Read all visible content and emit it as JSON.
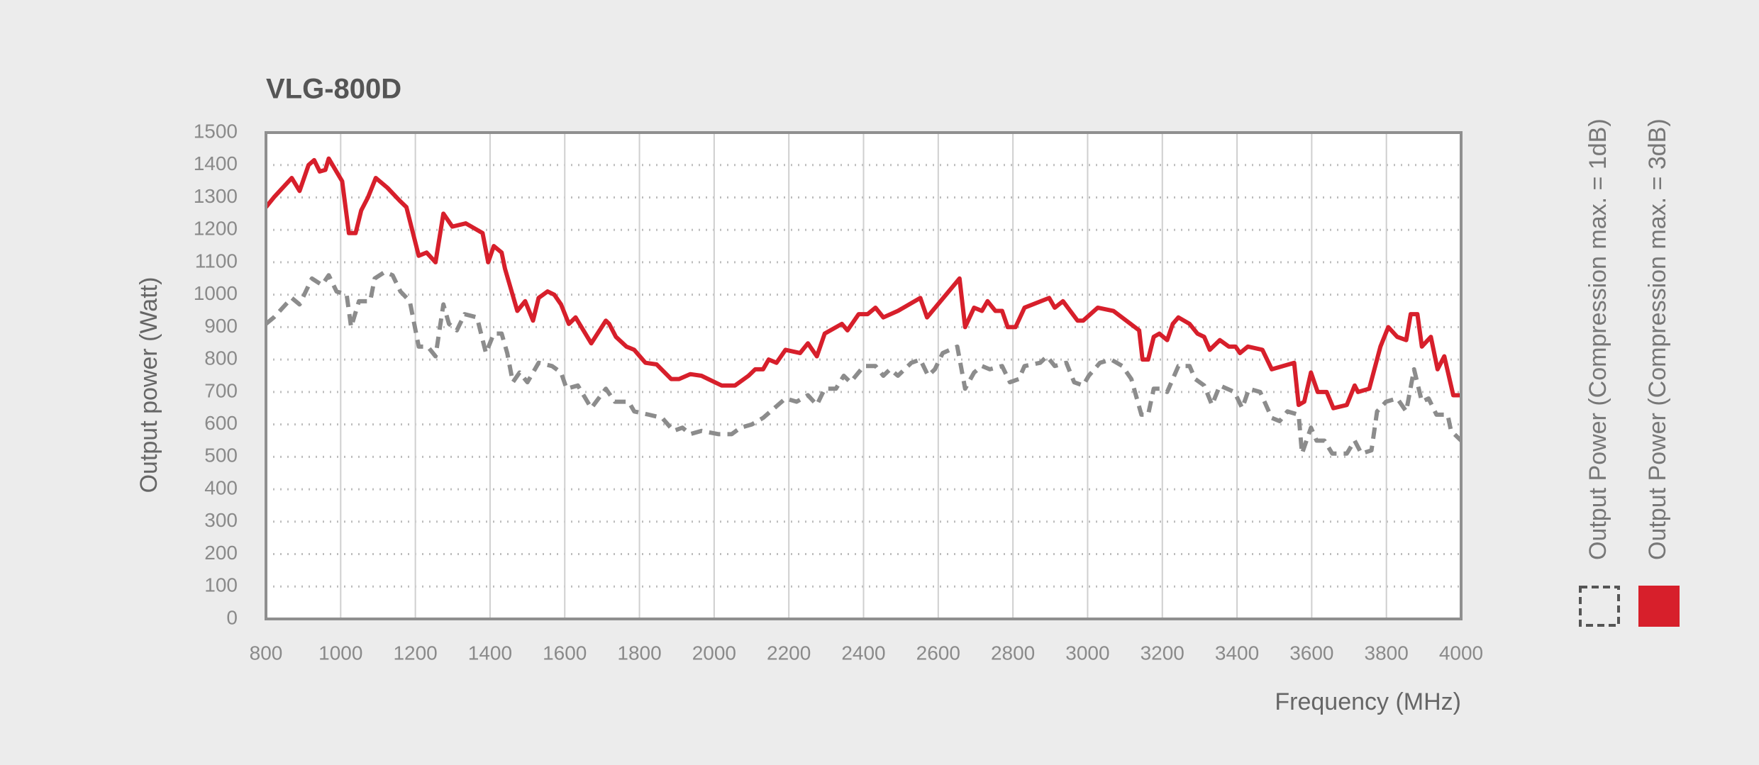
{
  "chart_data": {
    "type": "line",
    "title": "VLG-800D",
    "x_label": "Frequency (MHz)",
    "y_label": "Output power (Watt)",
    "xlim": [
      800,
      4000
    ],
    "xticks": [
      800,
      1000,
      1200,
      1400,
      1600,
      1800,
      2000,
      2200,
      2400,
      2600,
      2800,
      3000,
      3200,
      3400,
      3600,
      3800,
      4000
    ],
    "ylim": [
      0,
      1500
    ],
    "yticks": [
      0,
      100,
      200,
      300,
      400,
      500,
      600,
      700,
      800,
      900,
      1000,
      1100,
      1200,
      1300,
      1400,
      1500
    ],
    "grid": true,
    "legend": "right",
    "series": [
      {
        "name": "Output Power (Compression max. = 1dB)",
        "color": "#8c8c8c",
        "line_style": "dashed",
        "x": [
          800,
          821,
          869,
          890,
          923,
          950,
          968,
          989,
          1016,
          1028,
          1049,
          1079,
          1091,
          1118,
          1139,
          1160,
          1185,
          1209,
          1233,
          1254,
          1275,
          1290,
          1311,
          1332,
          1365,
          1389,
          1410,
          1431,
          1446,
          1461,
          1479,
          1500,
          1530,
          1566,
          1590,
          1605,
          1635,
          1671,
          1710,
          1734,
          1771,
          1786,
          1825,
          1861,
          1891,
          1915,
          1936,
          1966,
          2011,
          2047,
          2071,
          2101,
          2131,
          2161,
          2191,
          2221,
          2251,
          2275,
          2296,
          2326,
          2347,
          2365,
          2401,
          2432,
          2453,
          2471,
          2492,
          2528,
          2552,
          2573,
          2591,
          2612,
          2651,
          2672,
          2696,
          2717,
          2738,
          2771,
          2792,
          2816,
          2831,
          2873,
          2891,
          2912,
          2943,
          2964,
          2988,
          3003,
          3033,
          3063,
          3093,
          3117,
          3144,
          3162,
          3177,
          3198,
          3213,
          3243,
          3273,
          3288,
          3312,
          3333,
          3354,
          3393,
          3414,
          3432,
          3462,
          3493,
          3514,
          3535,
          3565,
          3574,
          3598,
          3613,
          3634,
          3655,
          3694,
          3715,
          3733,
          3760,
          3775,
          3799,
          3829,
          3853,
          3874,
          3895,
          3913,
          3934,
          3964,
          3973,
          4000
        ],
        "values": [
          910,
          930,
          990,
          970,
          1050,
          1030,
          1060,
          1010,
          1000,
          900,
          980,
          980,
          1050,
          1070,
          1060,
          1010,
          980,
          840,
          840,
          810,
          970,
          910,
          890,
          940,
          930,
          820,
          880,
          880,
          820,
          730,
          760,
          730,
          790,
          780,
          760,
          710,
          720,
          650,
          710,
          670,
          670,
          640,
          630,
          620,
          580,
          590,
          570,
          580,
          570,
          570,
          590,
          600,
          620,
          650,
          680,
          670,
          690,
          660,
          710,
          710,
          750,
          730,
          780,
          780,
          750,
          770,
          750,
          790,
          800,
          750,
          770,
          820,
          840,
          710,
          760,
          780,
          770,
          780,
          730,
          740,
          780,
          790,
          810,
          780,
          790,
          730,
          720,
          750,
          790,
          800,
          780,
          740,
          630,
          630,
          710,
          710,
          700,
          780,
          780,
          740,
          720,
          660,
          720,
          700,
          650,
          710,
          700,
          620,
          610,
          640,
          630,
          510,
          590,
          550,
          550,
          510,
          510,
          550,
          510,
          520,
          640,
          670,
          680,
          640,
          770,
          670,
          680,
          630,
          630,
          580,
          550
        ]
      },
      {
        "name": "Output Power (Compression max. = 3dB)",
        "color": "#d71f2b",
        "line_style": "solid",
        "x": [
          800,
          821,
          869,
          890,
          914,
          929,
          944,
          959,
          968,
          1004,
          1022,
          1040,
          1055,
          1073,
          1094,
          1125,
          1158,
          1176,
          1209,
          1230,
          1254,
          1275,
          1299,
          1335,
          1380,
          1395,
          1410,
          1431,
          1440,
          1473,
          1494,
          1515,
          1530,
          1554,
          1572,
          1590,
          1611,
          1629,
          1671,
          1710,
          1719,
          1737,
          1765,
          1786,
          1816,
          1846,
          1885,
          1906,
          1936,
          1966,
          2002,
          2020,
          2056,
          2092,
          2110,
          2131,
          2146,
          2167,
          2191,
          2230,
          2251,
          2275,
          2296,
          2342,
          2357,
          2387,
          2411,
          2432,
          2453,
          2492,
          2552,
          2570,
          2657,
          2672,
          2696,
          2717,
          2732,
          2753,
          2771,
          2786,
          2807,
          2831,
          2897,
          2912,
          2934,
          2973,
          2988,
          3027,
          3069,
          3138,
          3147,
          3162,
          3177,
          3192,
          3213,
          3228,
          3243,
          3273,
          3294,
          3312,
          3327,
          3354,
          3378,
          3396,
          3408,
          3429,
          3468,
          3493,
          3553,
          3565,
          3580,
          3598,
          3616,
          3640,
          3658,
          3694,
          3715,
          3724,
          3754,
          3784,
          3805,
          3829,
          3853,
          3865,
          3883,
          3895,
          3919,
          3937,
          3955,
          3979,
          4000
        ],
        "values": [
          1270,
          1300,
          1360,
          1320,
          1400,
          1415,
          1380,
          1385,
          1420,
          1350,
          1190,
          1190,
          1260,
          1300,
          1360,
          1330,
          1290,
          1270,
          1120,
          1130,
          1100,
          1250,
          1210,
          1220,
          1190,
          1100,
          1150,
          1130,
          1080,
          950,
          980,
          920,
          990,
          1010,
          1000,
          970,
          910,
          930,
          850,
          920,
          910,
          870,
          840,
          830,
          790,
          785,
          740,
          740,
          755,
          750,
          730,
          720,
          720,
          750,
          770,
          770,
          800,
          790,
          830,
          820,
          850,
          810,
          880,
          910,
          890,
          940,
          940,
          960,
          930,
          950,
          990,
          930,
          1050,
          900,
          960,
          950,
          980,
          950,
          950,
          900,
          900,
          960,
          990,
          960,
          980,
          920,
          920,
          960,
          950,
          890,
          800,
          800,
          870,
          880,
          860,
          910,
          930,
          910,
          880,
          870,
          830,
          860,
          840,
          840,
          820,
          840,
          830,
          770,
          790,
          660,
          670,
          760,
          700,
          700,
          650,
          660,
          720,
          700,
          710,
          840,
          900,
          870,
          860,
          940,
          940,
          840,
          870,
          770,
          810,
          690,
          690
        ]
      }
    ]
  }
}
